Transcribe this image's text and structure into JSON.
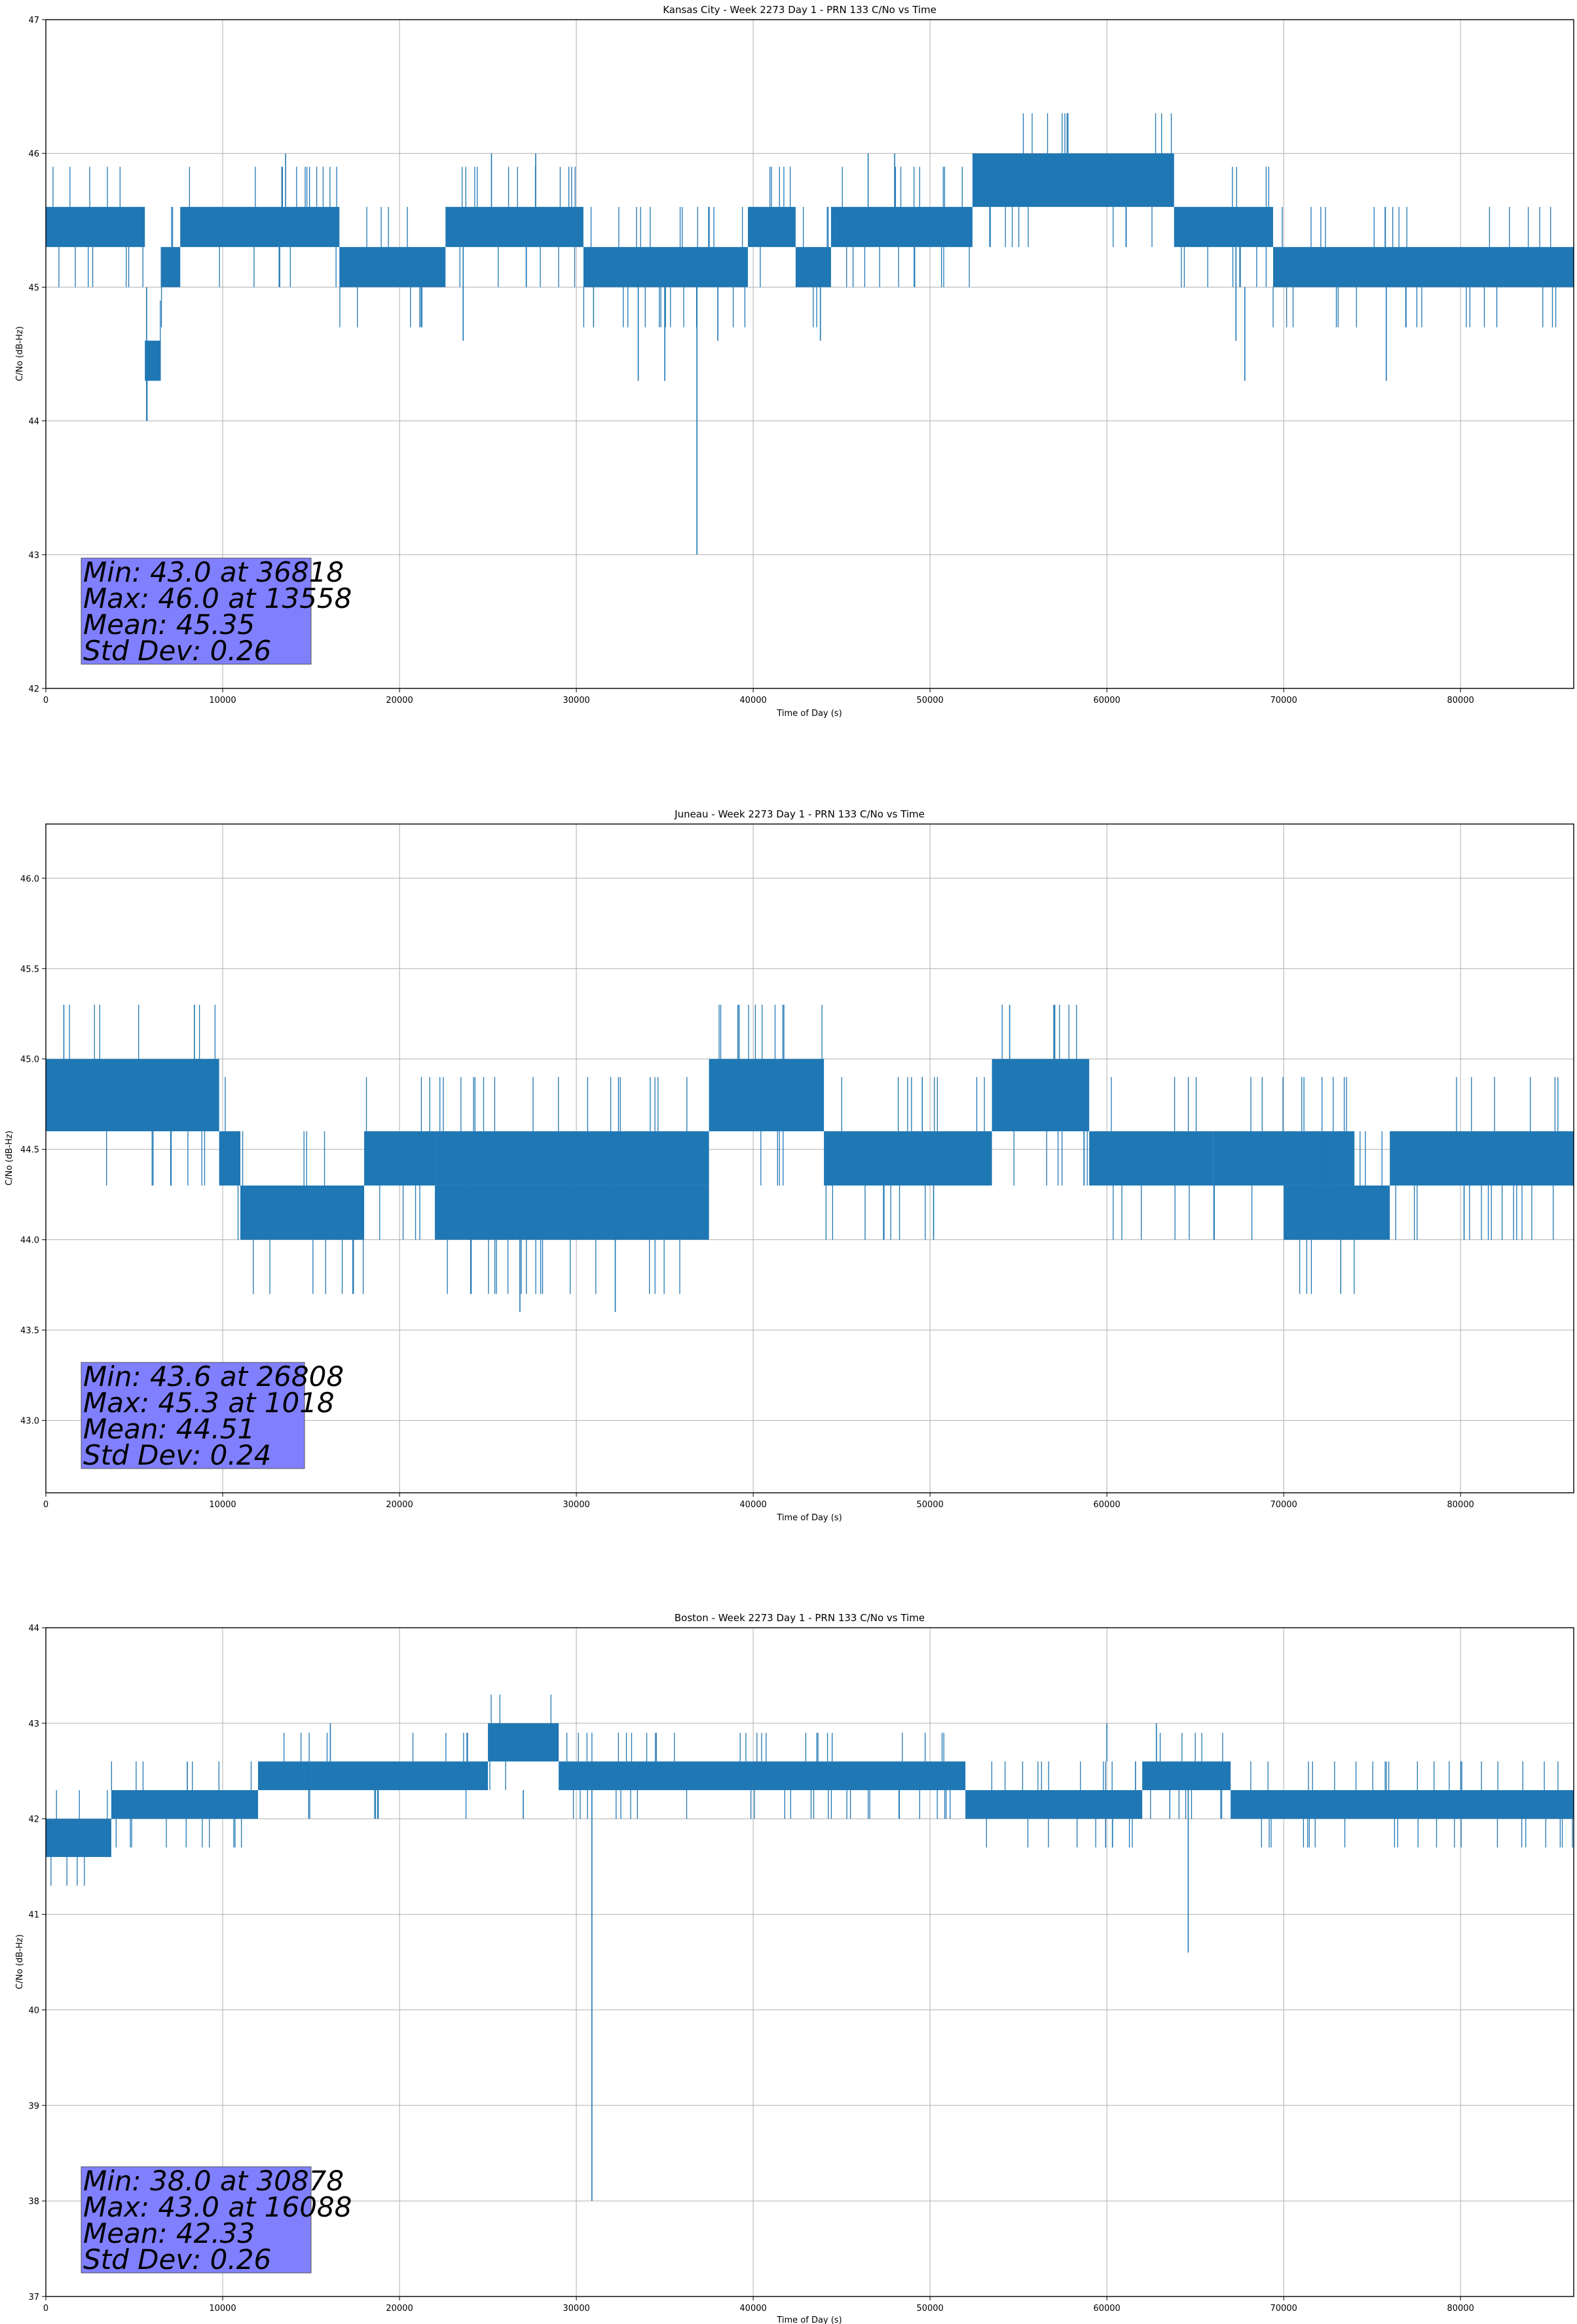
{
  "chart_data": [
    {
      "type": "line",
      "title": "Kansas City - Week 2273 Day 1 - PRN 133 C/No vs Time",
      "xlabel": "Time of Day (s)",
      "ylabel": "C/No (dB-Hz)",
      "xlim": [
        0,
        86400
      ],
      "ylim": [
        42,
        47
      ],
      "xticks": [
        0,
        10000,
        20000,
        30000,
        40000,
        50000,
        60000,
        70000,
        80000
      ],
      "yticks": [
        42,
        43,
        44,
        45,
        46,
        47
      ],
      "xtick_labels": [
        "0",
        "10000",
        "20000",
        "30000",
        "40000",
        "50000",
        "60000",
        "70000",
        "80000"
      ],
      "ytick_labels": [
        "42",
        "43",
        "44",
        "45",
        "46",
        "47"
      ],
      "grid": true,
      "line_color": "#1f77b4",
      "stats": [
        "Min: 43.0 at 36818",
        "Max: 46.0 at 13558",
        "Mean: 45.35",
        "Std Dev: 0.26"
      ],
      "bands": [
        {
          "x0": 0,
          "x1": 5600,
          "y0": 45.3,
          "y1": 45.6
        },
        {
          "x0": 5600,
          "x1": 6500,
          "y0": 44.3,
          "y1": 44.6
        },
        {
          "x0": 6500,
          "x1": 7600,
          "y0": 45.0,
          "y1": 45.3
        },
        {
          "x0": 7600,
          "x1": 16600,
          "y0": 45.3,
          "y1": 45.6
        },
        {
          "x0": 16600,
          "x1": 22600,
          "y0": 45.0,
          "y1": 45.3
        },
        {
          "x0": 22600,
          "x1": 30400,
          "y0": 45.3,
          "y1": 45.6
        },
        {
          "x0": 30400,
          "x1": 39700,
          "y0": 45.0,
          "y1": 45.3
        },
        {
          "x0": 39700,
          "x1": 42400,
          "y0": 45.3,
          "y1": 45.6
        },
        {
          "x0": 42400,
          "x1": 44400,
          "y0": 45.0,
          "y1": 45.3
        },
        {
          "x0": 44400,
          "x1": 52400,
          "y0": 45.3,
          "y1": 45.6
        },
        {
          "x0": 52400,
          "x1": 63800,
          "y0": 45.6,
          "y1": 46.0
        },
        {
          "x0": 63800,
          "x1": 69400,
          "y0": 45.3,
          "y1": 45.6
        },
        {
          "x0": 69400,
          "x1": 86400,
          "y0": 45.0,
          "y1": 45.3
        }
      ],
      "spikes": [
        {
          "x": 36818,
          "y0": 43.0,
          "y1": 45.3
        },
        {
          "x": 5700,
          "y0": 44.0,
          "y1": 45.0
        },
        {
          "x": 13558,
          "y0": 45.6,
          "y1": 46.0
        },
        {
          "x": 23600,
          "y0": 44.6,
          "y1": 45.3
        },
        {
          "x": 33500,
          "y0": 44.3,
          "y1": 45.0
        },
        {
          "x": 35000,
          "y0": 44.3,
          "y1": 45.0
        },
        {
          "x": 38000,
          "y0": 44.6,
          "y1": 45.0
        },
        {
          "x": 43800,
          "y0": 44.6,
          "y1": 45.0
        },
        {
          "x": 67300,
          "y0": 44.6,
          "y1": 45.3
        },
        {
          "x": 67800,
          "y0": 44.3,
          "y1": 45.0
        },
        {
          "x": 75800,
          "y0": 44.3,
          "y1": 45.0
        },
        {
          "x": 46500,
          "y0": 45.6,
          "y1": 46.0
        },
        {
          "x": 48000,
          "y0": 45.6,
          "y1": 46.0
        },
        {
          "x": 25200,
          "y0": 45.6,
          "y1": 46.0
        },
        {
          "x": 27700,
          "y0": 45.6,
          "y1": 46.0
        }
      ]
    },
    {
      "type": "line",
      "title": "Juneau - Week 2273 Day 1 - PRN 133 C/No vs Time",
      "xlabel": "Time of Day (s)",
      "ylabel": "C/No (dB-Hz)",
      "xlim": [
        0,
        86400
      ],
      "ylim": [
        42.6,
        46.3
      ],
      "xticks": [
        0,
        10000,
        20000,
        30000,
        40000,
        50000,
        60000,
        70000,
        80000
      ],
      "yticks": [
        43.0,
        43.5,
        44.0,
        44.5,
        45.0,
        45.5,
        46.0
      ],
      "xtick_labels": [
        "0",
        "10000",
        "20000",
        "30000",
        "40000",
        "50000",
        "60000",
        "70000",
        "80000"
      ],
      "ytick_labels": [
        "43.0",
        "43.5",
        "44.0",
        "44.5",
        "45.0",
        "45.5",
        "46.0"
      ],
      "grid": true,
      "line_color": "#1f77b4",
      "stats": [
        "Min: 43.6 at 26808",
        "Max: 45.3 at 1018",
        "Mean: 44.51",
        "Std Dev: 0.24"
      ],
      "bands": [
        {
          "x0": 0,
          "x1": 9800,
          "y0": 44.6,
          "y1": 45.0
        },
        {
          "x0": 9800,
          "x1": 11000,
          "y0": 44.3,
          "y1": 44.6
        },
        {
          "x0": 11000,
          "x1": 18000,
          "y0": 44.0,
          "y1": 44.3
        },
        {
          "x0": 18000,
          "x1": 22000,
          "y0": 44.3,
          "y1": 44.6
        },
        {
          "x0": 22000,
          "x1": 37500,
          "y0": 44.0,
          "y1": 44.3
        },
        {
          "x0": 22000,
          "x1": 37500,
          "y0": 44.3,
          "y1": 44.6
        },
        {
          "x0": 37500,
          "x1": 44000,
          "y0": 44.6,
          "y1": 45.0
        },
        {
          "x0": 44000,
          "x1": 53500,
          "y0": 44.3,
          "y1": 44.6
        },
        {
          "x0": 53500,
          "x1": 59000,
          "y0": 44.6,
          "y1": 45.0
        },
        {
          "x0": 59000,
          "x1": 66000,
          "y0": 44.3,
          "y1": 44.6
        },
        {
          "x0": 66000,
          "x1": 74000,
          "y0": 44.3,
          "y1": 44.6
        },
        {
          "x0": 70000,
          "x1": 76000,
          "y0": 44.0,
          "y1": 44.3
        },
        {
          "x0": 76000,
          "x1": 86400,
          "y0": 44.3,
          "y1": 44.6
        }
      ],
      "spikes": [
        {
          "x": 26808,
          "y0": 43.6,
          "y1": 44.3
        },
        {
          "x": 1018,
          "y0": 45.0,
          "y1": 45.3
        },
        {
          "x": 8400,
          "y0": 45.0,
          "y1": 45.3
        },
        {
          "x": 32200,
          "y0": 43.6,
          "y1": 44.3
        },
        {
          "x": 39200,
          "y0": 45.0,
          "y1": 45.3
        },
        {
          "x": 50200,
          "y0": 44.0,
          "y1": 44.3
        },
        {
          "x": 54500,
          "y0": 45.0,
          "y1": 45.3
        },
        {
          "x": 57000,
          "y0": 45.0,
          "y1": 45.3
        },
        {
          "x": 80200,
          "y0": 44.0,
          "y1": 44.3
        }
      ]
    },
    {
      "type": "line",
      "title": "Boston - Week 2273 Day 1 - PRN 133 C/No vs Time",
      "xlabel": "Time of Day (s)",
      "ylabel": "C/No (dB-Hz)",
      "xlim": [
        0,
        86400
      ],
      "ylim": [
        37,
        44
      ],
      "xticks": [
        0,
        10000,
        20000,
        30000,
        40000,
        50000,
        60000,
        70000,
        80000
      ],
      "yticks": [
        37,
        38,
        39,
        40,
        41,
        42,
        43,
        44
      ],
      "xtick_labels": [
        "0",
        "10000",
        "20000",
        "30000",
        "40000",
        "50000",
        "60000",
        "70000",
        "80000"
      ],
      "ytick_labels": [
        "37",
        "38",
        "39",
        "40",
        "41",
        "42",
        "43",
        "44"
      ],
      "grid": true,
      "line_color": "#1f77b4",
      "stats": [
        "Min: 38.0 at 30878",
        "Max: 43.0 at 16088",
        "Mean: 42.33",
        "Std Dev: 0.26"
      ],
      "bands": [
        {
          "x0": 0,
          "x1": 3700,
          "y0": 41.6,
          "y1": 42.0
        },
        {
          "x0": 3700,
          "x1": 12000,
          "y0": 42.0,
          "y1": 42.3
        },
        {
          "x0": 12000,
          "x1": 15000,
          "y0": 42.3,
          "y1": 42.6
        },
        {
          "x0": 15000,
          "x1": 25000,
          "y0": 42.3,
          "y1": 42.6
        },
        {
          "x0": 25000,
          "x1": 29000,
          "y0": 42.6,
          "y1": 43.0
        },
        {
          "x0": 29000,
          "x1": 40000,
          "y0": 42.3,
          "y1": 42.6
        },
        {
          "x0": 40000,
          "x1": 52000,
          "y0": 42.3,
          "y1": 42.6
        },
        {
          "x0": 52000,
          "x1": 62000,
          "y0": 42.0,
          "y1": 42.3
        },
        {
          "x0": 62000,
          "x1": 67000,
          "y0": 42.3,
          "y1": 42.6
        },
        {
          "x0": 67000,
          "x1": 86400,
          "y0": 42.0,
          "y1": 42.3
        }
      ],
      "spikes": [
        {
          "x": 30878,
          "y0": 38.0,
          "y1": 42.3
        },
        {
          "x": 64600,
          "y0": 40.6,
          "y1": 42.3
        },
        {
          "x": 16088,
          "y0": 42.6,
          "y1": 43.0
        },
        {
          "x": 27000,
          "y0": 42.0,
          "y1": 42.3
        },
        {
          "x": 8000,
          "y0": 42.3,
          "y1": 42.6
        },
        {
          "x": 60000,
          "y0": 42.6,
          "y1": 43.0
        },
        {
          "x": 62800,
          "y0": 42.6,
          "y1": 43.0
        }
      ]
    }
  ]
}
